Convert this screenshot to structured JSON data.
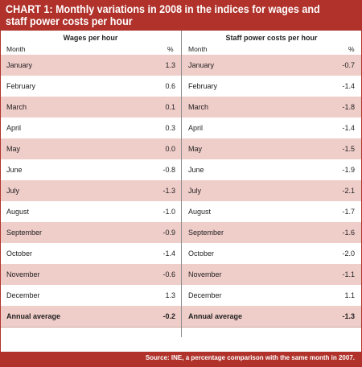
{
  "chart_data": {
    "type": "table",
    "title": "CHART 1: Monthly variations in 2008 in the indices for wages and staff power costs per hour",
    "series": [
      {
        "name": "Wages per hour",
        "values": [
          1.3,
          0.6,
          0.1,
          0.3,
          0.0,
          -0.8,
          -1.3,
          -1.0,
          -0.9,
          -1.4,
          -0.6,
          1.3
        ]
      },
      {
        "name": "Staff power costs per hour",
        "values": [
          -0.7,
          -1.4,
          -1.8,
          -1.4,
          -1.5,
          -1.9,
          -2.1,
          -1.7,
          -1.6,
          -2.0,
          -1.1,
          1.1
        ]
      }
    ],
    "categories": [
      "January",
      "February",
      "March",
      "April",
      "May",
      "June",
      "July",
      "August",
      "September",
      "October",
      "November",
      "December"
    ],
    "column_label": "Month",
    "unit_label": "%",
    "annual_label": "Annual average",
    "annual_values": [
      -0.2,
      -1.3
    ],
    "source": "Source: INE, a percentage comparison with the same month in 2007."
  },
  "display": {
    "left": [
      "1.3",
      "0.6",
      "0.1",
      "0.3",
      "0.0",
      "-0.8",
      "-1.3",
      "-1.0",
      "-0.9",
      "-1.4",
      "-0.6",
      "1.3"
    ],
    "right": [
      "-0.7",
      "-1.4",
      "-1.8",
      "-1.4",
      "-1.5",
      "-1.9",
      "-2.1",
      "-1.7",
      "-1.6",
      "-2.0",
      "-1.1",
      "1.1"
    ],
    "annual": [
      "-0.2",
      "-1.3"
    ]
  },
  "colors": {
    "accent": "#b0322b",
    "row_shade": "#efcdc9"
  }
}
